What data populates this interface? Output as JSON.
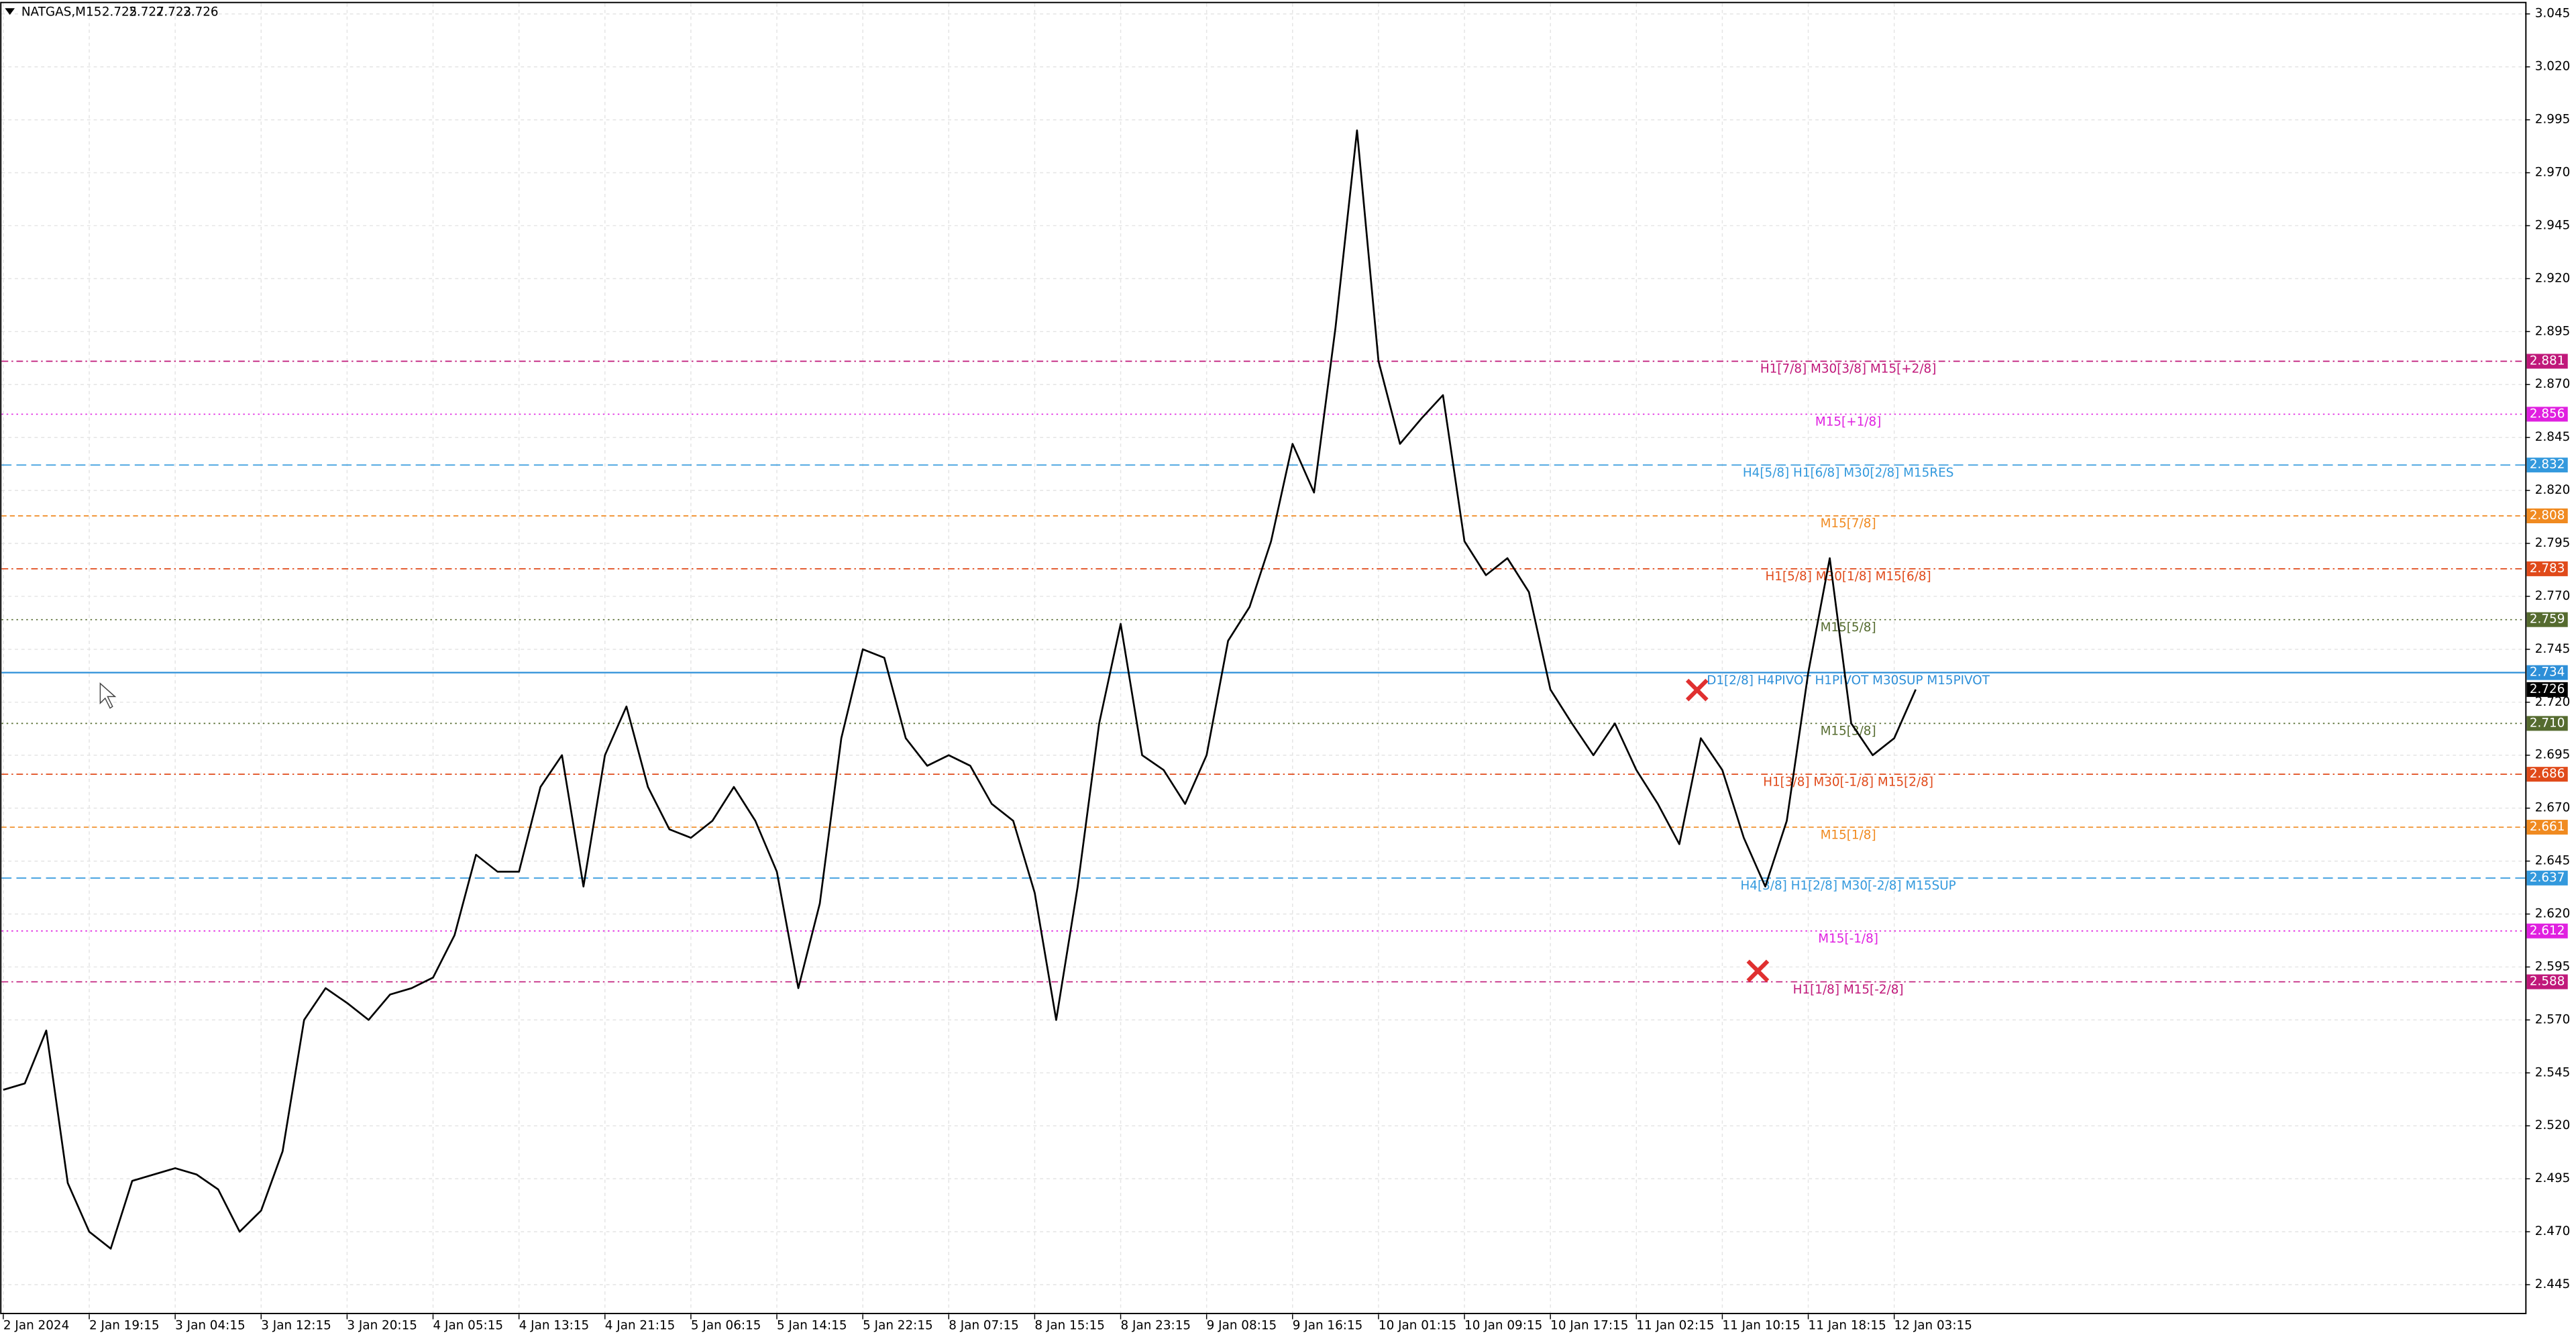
{
  "chart_data": {
    "type": "line",
    "title": "NATGAS,M15",
    "ohlc": [
      2.725,
      2.727,
      2.723,
      2.726
    ],
    "categories": [
      "2 Jan 2024",
      null,
      null,
      null,
      "2 Jan 19:15",
      null,
      null,
      null,
      "3 Jan 04:15",
      null,
      null,
      null,
      "3 Jan 12:15",
      null,
      null,
      null,
      "3 Jan 20:15",
      null,
      null,
      null,
      "4 Jan 05:15",
      null,
      null,
      null,
      "4 Jan 13:15",
      null,
      null,
      null,
      "4 Jan 21:15",
      null,
      null,
      null,
      "5 Jan 06:15",
      null,
      null,
      null,
      "5 Jan 14:15",
      null,
      null,
      null,
      "5 Jan 22:15",
      null,
      null,
      null,
      "8 Jan 07:15",
      null,
      null,
      null,
      "8 Jan 15:15",
      null,
      null,
      null,
      "8 Jan 23:15",
      null,
      null,
      null,
      "9 Jan 08:15",
      null,
      null,
      null,
      "9 Jan 16:15",
      null,
      null,
      null,
      "10 Jan 01:15",
      null,
      null,
      null,
      "10 Jan 09:15",
      null,
      null,
      null,
      "10 Jan 17:15",
      null,
      null,
      null,
      "11 Jan 02:15",
      null,
      null,
      null,
      "11 Jan 10:15",
      null,
      null,
      null,
      "11 Jan 18:15",
      null,
      null,
      null,
      "12 Jan 03:15",
      null
    ],
    "values": [
      2.537,
      2.54,
      2.565,
      2.493,
      2.47,
      2.462,
      2.494,
      2.497,
      2.5,
      2.497,
      2.49,
      2.47,
      2.48,
      2.508,
      2.57,
      2.585,
      2.578,
      2.57,
      2.582,
      2.585,
      2.59,
      2.61,
      2.648,
      2.64,
      2.64,
      2.68,
      2.695,
      2.633,
      2.695,
      2.718,
      2.68,
      2.66,
      2.656,
      2.664,
      2.68,
      2.664,
      2.64,
      2.585,
      2.625,
      2.703,
      2.745,
      2.741,
      2.703,
      2.69,
      2.695,
      2.69,
      2.672,
      2.664,
      2.63,
      2.57,
      2.633,
      2.71,
      2.757,
      2.695,
      2.688,
      2.672,
      2.695,
      2.749,
      2.765,
      2.796,
      2.842,
      2.819,
      2.897,
      2.99,
      2.881,
      2.842,
      2.854,
      2.865,
      2.796,
      2.78,
      2.788,
      2.772,
      2.726,
      2.71,
      2.695,
      2.71,
      2.688,
      2.672,
      2.653,
      2.703,
      2.688,
      2.656,
      2.633,
      2.664,
      2.734,
      2.788,
      2.71,
      2.695,
      2.703,
      2.726
    ],
    "color": "#000000",
    "ylim": [
      2.431,
      3.05
    ],
    "yticks": [
      2.445,
      {
        "value": 2.47,
        "label": "2.470"
      },
      2.495,
      {
        "value": 2.52,
        "label": "2.520"
      },
      2.545,
      {
        "value": 2.57,
        "label": "2.570"
      },
      2.595,
      {
        "value": 2.62,
        "label": "2.620"
      },
      2.645,
      {
        "value": 2.67,
        "label": "2.670"
      },
      2.695,
      {
        "value": 2.72,
        "label": "2.720"
      },
      2.745,
      {
        "value": 2.77,
        "label": "2.770"
      },
      2.795,
      {
        "value": 2.82,
        "label": "2.820"
      },
      2.845,
      {
        "value": 2.87,
        "label": "2.870"
      },
      2.895,
      {
        "value": 2.92,
        "label": "2.920"
      },
      2.945,
      {
        "value": 2.97,
        "label": "2.970"
      },
      2.995,
      {
        "value": 3.02,
        "label": "3.020"
      },
      3.045
    ],
    "grid": true,
    "last_price": 2.726,
    "levels": [
      {
        "name": "H1[7/8] M30[3/8] M15[+2/8]",
        "value": 2.881,
        "value_label": "2.881",
        "color": "#c0187a"
      },
      {
        "name": "M15[+1/8]",
        "value": 2.856,
        "value_label": "2.856",
        "color": "#e020e0"
      },
      {
        "name": "H4[5/8] H1[6/8] M30[2/8] M15RES",
        "value": 2.832,
        "value_label": "2.832",
        "color": "#3399dd"
      },
      {
        "name": "M15[7/8]",
        "value": 2.808,
        "value_label": "2.808",
        "color": "#f08a20"
      },
      {
        "name": "H1[5/8] M30[1/8] M15[6/8]",
        "value": 2.783,
        "value_label": "2.783",
        "color": "#e04a1a"
      },
      {
        "name": "M15[5/8]",
        "value": 2.759,
        "value_label": "2.759",
        "color": "#556b2f"
      },
      {
        "name": "D1[2/8] H4PIVOT H1PIVOT M30SUP M15PIVOT",
        "value": 2.734,
        "value_label": "2.734",
        "color": "#2d8fd8"
      },
      {
        "name": "M15[3/8]",
        "value": 2.71,
        "value_label": "2.710",
        "color": "#556b2f"
      },
      {
        "name": "H1[3/8] M30[-1/8] M15[2/8]",
        "value": 2.686,
        "value_label": "2.686",
        "color": "#e04a1a"
      },
      {
        "name": "M15[1/8]",
        "value": 2.661,
        "value_label": "2.661",
        "color": "#f08a20"
      },
      {
        "name": "H4[3/8] H1[2/8] M30[-2/8] M15SUP",
        "value": 2.637,
        "value_label": "2.637",
        "color": "#3399dd"
      },
      {
        "name": "M15[-1/8]",
        "value": 2.612,
        "value_label": "2.612",
        "color": "#e020e0"
      },
      {
        "name": "H1[1/8] M15[-2/8]",
        "value": 2.588,
        "value_label": "2.588",
        "color": "#c0187a"
      }
    ]
  }
}
